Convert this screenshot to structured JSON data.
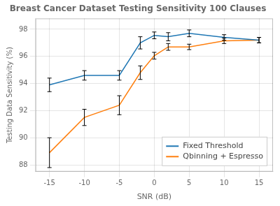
{
  "chart_data": {
    "type": "line",
    "title": "Breast Cancer Dataset Testing Sensitivity 100 Clauses",
    "xlabel": "SNR (dB)",
    "ylabel": "Testing Data Sensitivity (%)",
    "x": [
      -15,
      -10,
      -5,
      -2,
      0,
      2,
      5,
      10,
      15
    ],
    "series": [
      {
        "name": "Fixed Threshold",
        "color": "#1f77b4",
        "values": [
          93.9,
          94.6,
          94.6,
          97.0,
          97.55,
          97.45,
          97.7,
          97.4,
          97.2
        ],
        "error": [
          0.5,
          0.35,
          0.35,
          0.45,
          0.25,
          0.3,
          0.25,
          0.2,
          0.2
        ]
      },
      {
        "name": "Qbinning + Espresso",
        "color": "#ff7f0e",
        "values": [
          88.9,
          91.5,
          92.4,
          94.8,
          96.05,
          96.7,
          96.7,
          97.15,
          97.2
        ],
        "error": [
          1.1,
          0.6,
          0.7,
          0.5,
          0.25,
          0.25,
          0.2,
          0.2,
          0.2
        ]
      }
    ],
    "xlim": [
      -17,
      17
    ],
    "ylim": [
      87.5,
      98.8
    ],
    "xticks": [
      -15,
      -10,
      -5,
      0,
      5,
      10,
      15
    ],
    "yticks": [
      88,
      90,
      92,
      94,
      96,
      98
    ],
    "grid": true,
    "legend": "lower right"
  }
}
